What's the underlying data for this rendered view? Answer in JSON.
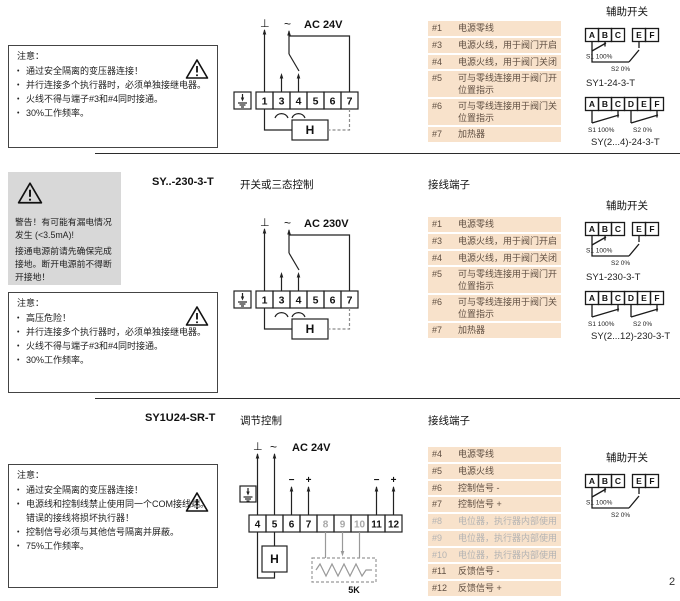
{
  "page_number": "2",
  "shared": {
    "aux_title": "辅助开关",
    "terminals_title": "接线端子",
    "s1_label": "S1 100%",
    "s2_label": "S2 0%",
    "ground_symbol": "⊥",
    "ac_symbol": "~",
    "heater_label": "H"
  },
  "section1": {
    "notes": {
      "title": "注意：",
      "items": [
        "通过安全隔离的变压器连接！",
        "并行连接多个执行器时，必须单独接继电器。",
        "火线不得与端子#3和#4同时接通。",
        "30%工作频率。"
      ]
    },
    "diagram": {
      "voltage": "AC 24V",
      "terminals": [
        "1",
        "3",
        "4",
        "5",
        "6",
        "7"
      ]
    },
    "terminal_table": [
      {
        "num": "#1",
        "desc": "电源零线"
      },
      {
        "num": "#3",
        "desc": "电源火线，用于阀门开启"
      },
      {
        "num": "#4",
        "desc": "电源火线，用于阀门关闭"
      },
      {
        "num": "#5",
        "desc": "可与零线连接用于阀门开位置指示"
      },
      {
        "num": "#6",
        "desc": "可与零线连接用于阀门关位置指示"
      },
      {
        "num": "#7",
        "desc": "加热器"
      }
    ],
    "aux": {
      "sw1": {
        "letters": [
          "A",
          "B",
          "C",
          "E",
          "F"
        ],
        "model": "SY1-24-3-T"
      },
      "sw2": {
        "letters": [
          "A",
          "B",
          "C",
          "D",
          "E",
          "F"
        ],
        "model": "SY(2...4)-24-3-T"
      }
    }
  },
  "section2": {
    "model": "SY..-230-3-T",
    "control_type": "开关或三态控制",
    "warning": {
      "lines": [
        "警告！有可能有漏电情况发生 (<3.5mA)!",
        "接通电源前请先确保完成接地。断开电源前不得断开接地！"
      ]
    },
    "notes": {
      "title": "注意：",
      "items": [
        "高压危险！",
        "并行连接多个执行器时，必须单独接继电器。",
        "火线不得与端子#3和#4同时接通。",
        "30%工作频率。"
      ]
    },
    "diagram": {
      "voltage": "AC 230V",
      "terminals": [
        "1",
        "3",
        "4",
        "5",
        "6",
        "7"
      ]
    },
    "terminal_table": [
      {
        "num": "#1",
        "desc": "电源零线"
      },
      {
        "num": "#3",
        "desc": "电源火线，用于阀门开启"
      },
      {
        "num": "#4",
        "desc": "电源火线，用于阀门关闭"
      },
      {
        "num": "#5",
        "desc": "可与零线连接用于阀门开位置指示"
      },
      {
        "num": "#6",
        "desc": "可与零线连接用于阀门关位置指示"
      },
      {
        "num": "#7",
        "desc": "加热器"
      }
    ],
    "aux": {
      "sw1": {
        "letters": [
          "A",
          "B",
          "C",
          "E",
          "F"
        ],
        "model": "SY1-230-3-T"
      },
      "sw2": {
        "letters": [
          "A",
          "B",
          "C",
          "D",
          "E",
          "F"
        ],
        "model": "SY(2...12)-230-3-T"
      }
    }
  },
  "section3": {
    "model": "SY1U24-SR-T",
    "control_type": "调节控制",
    "notes": {
      "title": "注意：",
      "items": [
        "通过安全隔离的变压器连接！",
        "电源线和控制线禁止使用同一个COM接线端。错误的接线将损坏执行器！",
        "控制信号必须与其他信号隔离并屏蔽。",
        "75%工作频率。"
      ]
    },
    "diagram": {
      "voltage": "AC 24V",
      "terminals": [
        "4",
        "5",
        "6",
        "7",
        "8",
        "9",
        "10",
        "11",
        "12"
      ],
      "pot_label": "5K",
      "minus": "−",
      "plus": "+"
    },
    "terminal_table": [
      {
        "num": "#4",
        "desc": "电源零线"
      },
      {
        "num": "#5",
        "desc": "电源火线"
      },
      {
        "num": "#6",
        "desc": "控制信号 -"
      },
      {
        "num": "#7",
        "desc": "控制信号 +"
      },
      {
        "num": "#8",
        "desc": "电位器，执行器内部使用",
        "gray": true
      },
      {
        "num": "#9",
        "desc": "电位器，执行器内部使用",
        "gray": true
      },
      {
        "num": "#10",
        "desc": "电位器，执行器内部使用",
        "gray": true
      },
      {
        "num": "#11",
        "desc": "反馈信号 -"
      },
      {
        "num": "#12",
        "desc": "反馈信号 +"
      }
    ],
    "aux": {
      "sw1": {
        "letters": [
          "A",
          "B",
          "C",
          "E",
          "F"
        ]
      }
    }
  }
}
